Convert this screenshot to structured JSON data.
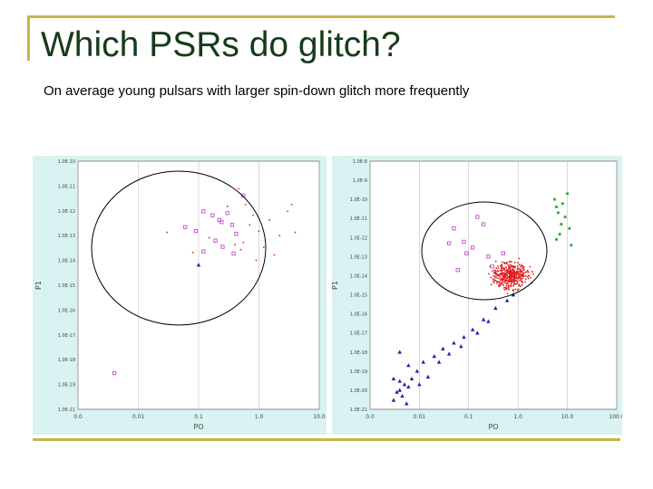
{
  "slide": {
    "title": "Which PSRs do glitch?",
    "subtitle": "On average young pulsars with larger spin-down glitch more frequently"
  },
  "colors": {
    "background_plot": "#d9f2f2",
    "glitching": "#c050c8",
    "radio_pulsars": "#e02020",
    "millisecond_pulsars": "#2020b0",
    "magnetars": "#20b020",
    "rule": "#c7b64a",
    "title": "#173b1a"
  },
  "chart_data": [
    {
      "type": "scatter",
      "panel": "left",
      "xlabel": "PO",
      "ylabel": "P1",
      "xscale": "log",
      "yscale": "log",
      "xlim": [
        0.001,
        10
      ],
      "ylim": [
        1e-21,
        1e-10
      ],
      "x_ticks": [
        "0.0",
        "0.01",
        "0.1",
        "1.0",
        "10.0"
      ],
      "y_ticks": [
        "1.0E-10",
        "1.0E-11",
        "1.0E-12",
        "1.0E-13",
        "1.0E-14",
        "1.0E-15",
        "1.0E-16",
        "1.0E-17",
        "1.0E-18",
        "1.0E-19",
        "1.0E-21"
      ],
      "grid": "sparse",
      "annotation": "circle around young high spin-down pulsars",
      "series": [
        {
          "marker": "open-square",
          "color": "#c050c8",
          "points": [
            [
              0.55,
              3e-12
            ],
            [
              0.12,
              6e-13
            ],
            [
              0.17,
              4e-13
            ],
            [
              0.3,
              5e-13
            ],
            [
              0.22,
              2.5e-13
            ],
            [
              0.24,
              2e-13
            ],
            [
              0.36,
              1.5e-13
            ],
            [
              0.06,
              1.2e-13
            ],
            [
              0.09,
              8e-14
            ],
            [
              0.42,
              6e-14
            ],
            [
              0.19,
              3e-14
            ],
            [
              0.25,
              1.6e-14
            ],
            [
              0.38,
              8e-15
            ],
            [
              0.12,
              1e-14
            ],
            [
              0.004,
              4e-20
            ]
          ]
        },
        {
          "marker": "dot",
          "color": "#e02020",
          "points": [
            [
              0.46,
              6e-12
            ],
            [
              0.6,
              1.2e-12
            ],
            [
              0.8,
              4e-13
            ],
            [
              1.5,
              2.5e-13
            ],
            [
              3.0,
              6e-13
            ],
            [
              2.2,
              5e-14
            ],
            [
              1.2,
              1.5e-14
            ],
            [
              0.9,
              4e-15
            ],
            [
              1.8,
              7e-15
            ],
            [
              0.5,
              1.2e-14
            ],
            [
              0.7,
              1.5e-13
            ],
            [
              0.15,
              4e-14
            ],
            [
              0.4,
              2e-14
            ],
            [
              3.5,
              1.2e-12
            ],
            [
              0.03,
              7e-14
            ],
            [
              4.0,
              7e-14
            ],
            [
              0.3,
              1e-12
            ],
            [
              1.0,
              8e-14
            ],
            [
              0.08,
              9e-15
            ],
            [
              0.55,
              2.5e-14
            ]
          ]
        },
        {
          "marker": "triangle",
          "color": "#2020b0",
          "points": [
            [
              0.1,
              2.5e-15
            ]
          ]
        }
      ]
    },
    {
      "type": "scatter",
      "panel": "right",
      "xlabel": "PO",
      "ylabel": "P1",
      "xscale": "log",
      "yscale": "log",
      "xlim": [
        0.001,
        100
      ],
      "ylim": [
        1e-21,
        1e-08
      ],
      "x_ticks": [
        "0.0",
        "0.01",
        "0.1",
        "1.0",
        "10.0",
        "100.0"
      ],
      "y_ticks": [
        "1.0E-8",
        "1.0E-9",
        "1.0E-10",
        "1.0E-11",
        "1.0E-12",
        "1.0E-13",
        "1.0E-14",
        "1.0E-15",
        "1.0E-16",
        "1.0E-17",
        "1.0E-18",
        "1.0E-19",
        "1.0E-20",
        "1.0E-21"
      ],
      "grid": "sparse",
      "annotation": "ellipse around young high spin-down pulsars",
      "series": [
        {
          "marker": "open-square",
          "color": "#c050c8",
          "points": [
            [
              0.15,
              1.2e-11
            ],
            [
              0.05,
              3e-12
            ],
            [
              0.08,
              6e-13
            ],
            [
              0.04,
              5e-13
            ],
            [
              0.12,
              3e-13
            ],
            [
              0.09,
              1.5e-13
            ],
            [
              0.06,
              2e-14
            ],
            [
              0.25,
              1e-13
            ],
            [
              0.3,
              3e-14
            ],
            [
              0.5,
              1.5e-13
            ],
            [
              0.2,
              5e-12
            ]
          ]
        },
        {
          "marker": "dot",
          "color": "#e02020",
          "distribution": "dense cluster",
          "cluster_center": [
            0.7,
            1e-14
          ],
          "count": 420
        },
        {
          "marker": "triangle",
          "color": "#2020b0",
          "points": [
            [
              0.004,
              1e-20
            ],
            [
              0.005,
              2e-20
            ],
            [
              0.003,
              4e-20
            ],
            [
              0.004,
              3e-20
            ],
            [
              0.006,
              1.5e-20
            ],
            [
              0.0045,
              5e-21
            ],
            [
              0.0035,
              8e-21
            ],
            [
              0.007,
              4e-20
            ],
            [
              0.009,
              1e-19
            ],
            [
              0.012,
              3e-19
            ],
            [
              0.02,
              6e-19
            ],
            [
              0.03,
              1.5e-18
            ],
            [
              0.05,
              3e-18
            ],
            [
              0.08,
              6e-18
            ],
            [
              0.12,
              1.5e-17
            ],
            [
              0.2,
              5e-17
            ],
            [
              0.35,
              2e-16
            ],
            [
              0.6,
              5e-16
            ],
            [
              0.8,
              1e-15
            ],
            [
              0.004,
              1e-18
            ],
            [
              0.006,
              2e-19
            ],
            [
              0.015,
              5e-20
            ],
            [
              0.025,
              3e-19
            ],
            [
              0.04,
              8e-19
            ],
            [
              0.003,
              3e-21
            ],
            [
              0.0055,
              2e-21
            ],
            [
              0.01,
              2e-20
            ],
            [
              0.07,
              2e-18
            ],
            [
              0.15,
              1e-17
            ],
            [
              0.25,
              4e-17
            ]
          ]
        },
        {
          "marker": "dot-square",
          "color": "#20b020",
          "points": [
            [
              5.5,
              1e-10
            ],
            [
              6,
              4e-11
            ],
            [
              8,
              6e-11
            ],
            [
              6.5,
              2e-11
            ],
            [
              9,
              1.2e-11
            ],
            [
              7.5,
              5e-12
            ],
            [
              11,
              3e-12
            ],
            [
              7,
              1.5e-12
            ],
            [
              6,
              8e-13
            ],
            [
              12,
              4e-13
            ],
            [
              10,
              2e-10
            ]
          ]
        }
      ]
    }
  ]
}
